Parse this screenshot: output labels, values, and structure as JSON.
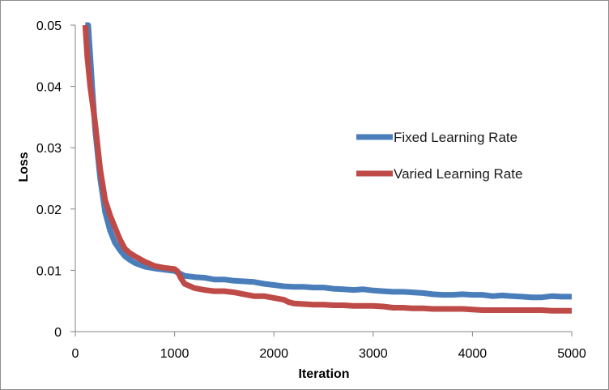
{
  "chart_data": {
    "type": "line",
    "title": "",
    "xlabel": "Iteration",
    "ylabel": "Loss",
    "xlim": [
      0,
      5000
    ],
    "ylim": [
      0,
      0.05
    ],
    "xticks": [
      0,
      1000,
      2000,
      3000,
      4000,
      5000
    ],
    "xtick_labels": [
      "0",
      "1000",
      "2000",
      "3000",
      "4000",
      "5000"
    ],
    "yticks": [
      0,
      0.01,
      0.02,
      0.03,
      0.04,
      0.05
    ],
    "ytick_labels": [
      "0",
      "0.01",
      "0.02",
      "0.03",
      "0.04",
      "0.05"
    ],
    "grid": false,
    "legend_position": "right",
    "series": [
      {
        "name": "Fixed Learning Rate",
        "color": "#4a7ebb",
        "x": [
          100,
          130,
          150,
          170,
          200,
          250,
          300,
          350,
          400,
          450,
          500,
          550,
          600,
          700,
          800,
          900,
          1000,
          1100,
          1200,
          1300,
          1400,
          1500,
          1600,
          1700,
          1800,
          1900,
          2000,
          2100,
          2200,
          2300,
          2400,
          2500,
          2600,
          2700,
          2800,
          2900,
          3000,
          3100,
          3200,
          3300,
          3400,
          3500,
          3600,
          3700,
          3800,
          3900,
          4000,
          4100,
          4200,
          4300,
          4400,
          4500,
          4600,
          4700,
          4800,
          4900,
          5000
        ],
        "y": [
          0.05,
          0.05,
          0.045,
          0.04,
          0.033,
          0.025,
          0.0195,
          0.0165,
          0.0145,
          0.0133,
          0.0123,
          0.0117,
          0.0112,
          0.0106,
          0.0103,
          0.0101,
          0.0099,
          0.0091,
          0.0089,
          0.0088,
          0.0085,
          0.0085,
          0.0083,
          0.0082,
          0.0081,
          0.0078,
          0.0076,
          0.0074,
          0.0073,
          0.0073,
          0.0072,
          0.0072,
          0.007,
          0.0069,
          0.0068,
          0.0069,
          0.0067,
          0.0066,
          0.0065,
          0.0065,
          0.0064,
          0.0063,
          0.0061,
          0.006,
          0.006,
          0.0061,
          0.006,
          0.006,
          0.0058,
          0.0059,
          0.0058,
          0.0057,
          0.0056,
          0.0056,
          0.0058,
          0.0057,
          0.0057
        ]
      },
      {
        "name": "Varied Learning Rate",
        "color": "#be4b48",
        "x": [
          100,
          120,
          150,
          200,
          250,
          300,
          350,
          400,
          450,
          500,
          550,
          600,
          700,
          800,
          900,
          1000,
          1030,
          1060,
          1100,
          1200,
          1300,
          1400,
          1500,
          1600,
          1700,
          1800,
          1900,
          2000,
          2100,
          2150,
          2200,
          2300,
          2400,
          2500,
          2600,
          2700,
          2800,
          2900,
          3000,
          3100,
          3200,
          3300,
          3400,
          3500,
          3600,
          3700,
          3800,
          3900,
          4000,
          4100,
          4200,
          4300,
          4400,
          4500,
          4600,
          4700,
          4800,
          4900,
          5000
        ],
        "y": [
          0.05,
          0.045,
          0.04,
          0.034,
          0.0265,
          0.0215,
          0.019,
          0.017,
          0.015,
          0.0135,
          0.0128,
          0.0123,
          0.0114,
          0.0107,
          0.0104,
          0.0102,
          0.0098,
          0.0088,
          0.0078,
          0.0071,
          0.0068,
          0.0066,
          0.0066,
          0.0064,
          0.0061,
          0.0058,
          0.0058,
          0.0055,
          0.0052,
          0.0048,
          0.0046,
          0.0045,
          0.0044,
          0.0044,
          0.0043,
          0.0043,
          0.0042,
          0.0042,
          0.0042,
          0.0041,
          0.0039,
          0.0039,
          0.0038,
          0.0038,
          0.0037,
          0.0037,
          0.0037,
          0.0037,
          0.0036,
          0.0035,
          0.0035,
          0.0035,
          0.0035,
          0.0035,
          0.0035,
          0.0035,
          0.0034,
          0.0034,
          0.0034
        ]
      }
    ]
  }
}
